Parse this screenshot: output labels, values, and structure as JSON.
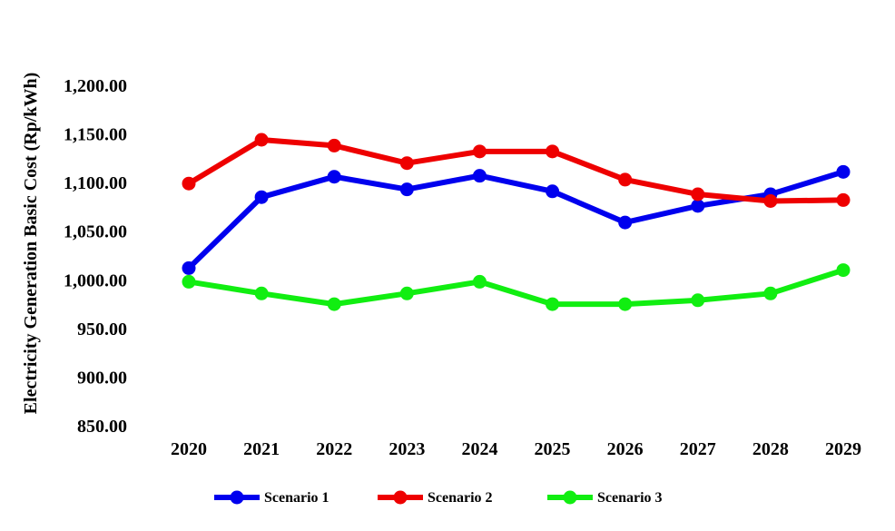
{
  "chart_data": {
    "type": "line",
    "title": "",
    "xlabel": "",
    "ylabel": "Electricity Generation Basic Cost (Rp/kWh)",
    "x": [
      "2020",
      "2021",
      "2022",
      "2023",
      "2024",
      "2025",
      "2026",
      "2027",
      "2028",
      "2029"
    ],
    "y_ticks": [
      "850.00",
      "900.00",
      "950.00",
      "1,000.00",
      "1,050.00",
      "1,100.00",
      "1,150.00",
      "1,200.00"
    ],
    "ylim": [
      850,
      1200
    ],
    "grid": false,
    "legend_position": "bottom",
    "series": [
      {
        "name": "Scenario 1",
        "color": "#0000ee",
        "values": [
          1012,
          1085,
          1106,
          1093,
          1107,
          1091,
          1059,
          1076,
          1088,
          1111
        ]
      },
      {
        "name": "Scenario 2",
        "color": "#ee0000",
        "values": [
          1099,
          1144,
          1138,
          1120,
          1132,
          1132,
          1103,
          1088,
          1081,
          1082
        ]
      },
      {
        "name": "Scenario 3",
        "color": "#11ee11",
        "values": [
          998,
          986,
          975,
          986,
          998,
          975,
          975,
          979,
          986,
          1010
        ]
      }
    ]
  }
}
